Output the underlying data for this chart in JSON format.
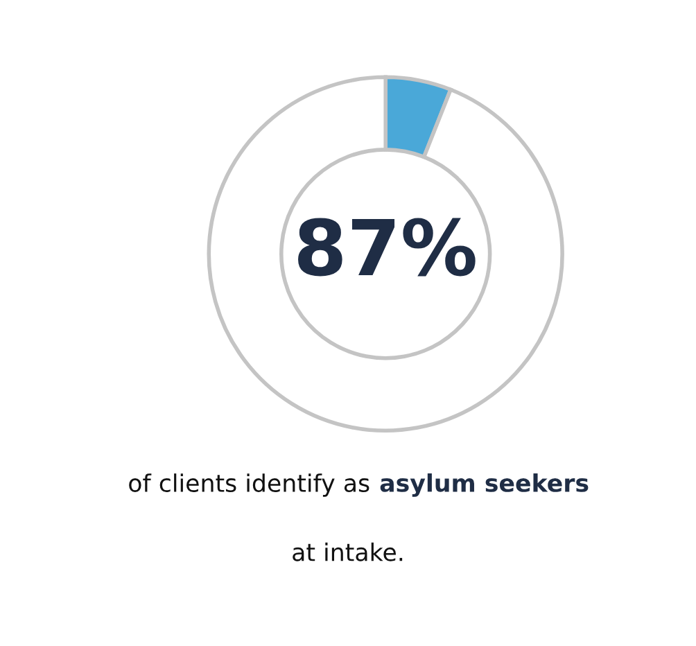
{
  "chart_data": {
    "type": "donut",
    "categories": [
      null,
      null
    ],
    "values": [
      6,
      94
    ],
    "colors": [
      "#4aa8d8",
      "#ffffff"
    ],
    "annotations": [
      "87%",
      "of clients identify as",
      "asylum seekers",
      "at intake."
    ]
  }
}
